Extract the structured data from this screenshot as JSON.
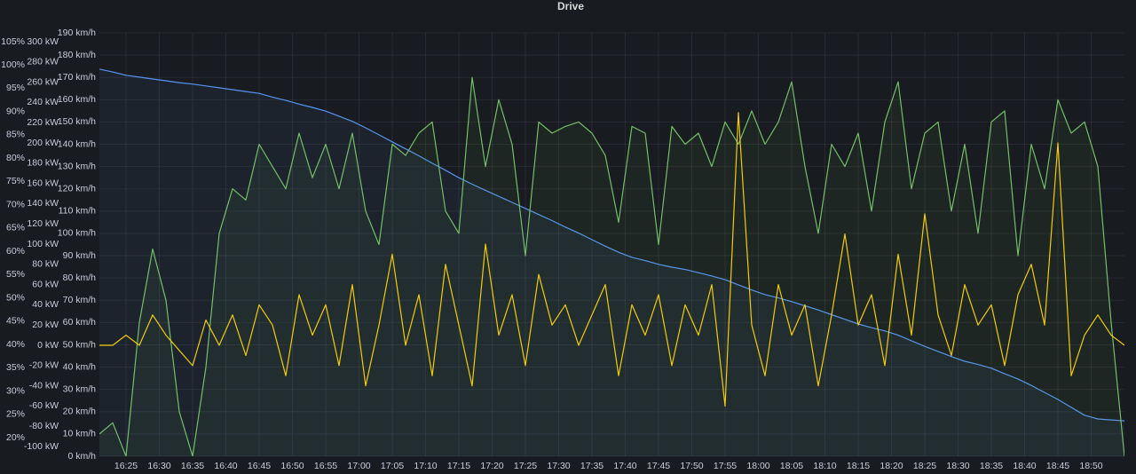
{
  "chart_data": {
    "type": "line",
    "title": "Drive",
    "x": [
      "16:21",
      "16:23",
      "16:25",
      "16:27",
      "16:29",
      "16:31",
      "16:33",
      "16:35",
      "16:37",
      "16:39",
      "16:41",
      "16:43",
      "16:45",
      "16:47",
      "16:49",
      "16:51",
      "16:53",
      "16:55",
      "16:57",
      "16:59",
      "17:01",
      "17:03",
      "17:05",
      "17:07",
      "17:09",
      "17:11",
      "17:13",
      "17:15",
      "17:17",
      "17:19",
      "17:21",
      "17:23",
      "17:25",
      "17:27",
      "17:29",
      "17:31",
      "17:33",
      "17:35",
      "17:37",
      "17:39",
      "17:41",
      "17:43",
      "17:45",
      "17:47",
      "17:49",
      "17:51",
      "17:53",
      "17:55",
      "17:57",
      "17:59",
      "18:01",
      "18:03",
      "18:05",
      "18:07",
      "18:09",
      "18:11",
      "18:13",
      "18:15",
      "18:17",
      "18:19",
      "18:21",
      "18:23",
      "18:25",
      "18:27",
      "18:29",
      "18:31",
      "18:33",
      "18:35",
      "18:37",
      "18:39",
      "18:41",
      "18:43",
      "18:45",
      "18:47",
      "18:49",
      "18:51",
      "18:53",
      "18:55"
    ],
    "xlim": [
      "16:21",
      "18:55"
    ],
    "xticks": [
      "16:25",
      "16:30",
      "16:35",
      "16:40",
      "16:45",
      "16:50",
      "16:55",
      "17:00",
      "17:05",
      "17:10",
      "17:15",
      "17:20",
      "17:25",
      "17:30",
      "17:35",
      "17:40",
      "17:45",
      "17:50",
      "17:55",
      "18:00",
      "18:05",
      "18:10",
      "18:15",
      "18:20",
      "18:25",
      "18:30",
      "18:35",
      "18:40",
      "18:45",
      "18:50"
    ],
    "ylim": [
      0,
      190
    ],
    "yticks": [
      {
        "value": 0,
        "label": "0 km/h"
      },
      {
        "value": 10,
        "label": "10 km/h"
      },
      {
        "value": 20,
        "label": "20 km/h"
      },
      {
        "value": 30,
        "label": "30 km/h"
      },
      {
        "value": 40,
        "label": "40 km/h"
      },
      {
        "value": 50,
        "label": "50 km/h"
      },
      {
        "value": 60,
        "label": "60 km/h"
      },
      {
        "value": 70,
        "label": "70 km/h"
      },
      {
        "value": 80,
        "label": "80 km/h"
      },
      {
        "value": 90,
        "label": "90 km/h"
      },
      {
        "value": 100,
        "label": "100 km/h"
      },
      {
        "value": 110,
        "label": "110 km/h"
      },
      {
        "value": 120,
        "label": "120 km/h"
      },
      {
        "value": 130,
        "label": "130 km/h"
      },
      {
        "value": 140,
        "label": "140 km/h"
      },
      {
        "value": 150,
        "label": "150 km/h"
      },
      {
        "value": 160,
        "label": "160 km/h"
      },
      {
        "value": 170,
        "label": "170 km/h"
      },
      {
        "value": 180,
        "label": "180 km/h"
      },
      {
        "value": 190,
        "label": "190 km/h"
      }
    ],
    "y2lim": [
      -109.6,
      308.8
    ],
    "y2ticks": [
      {
        "value": -100,
        "label": "-100 kW"
      },
      {
        "value": -80,
        "label": "-80 kW"
      },
      {
        "value": -60,
        "label": "-60 kW"
      },
      {
        "value": -40,
        "label": "-40 kW"
      },
      {
        "value": -20,
        "label": "-20 kW"
      },
      {
        "value": 0,
        "label": "0 kW"
      },
      {
        "value": 20,
        "label": "20 kW"
      },
      {
        "value": 40,
        "label": "40 kW"
      },
      {
        "value": 60,
        "label": "60 kW"
      },
      {
        "value": 80,
        "label": "80 kW"
      },
      {
        "value": 100,
        "label": "100 kW"
      },
      {
        "value": 120,
        "label": "120 kW"
      },
      {
        "value": 140,
        "label": "140 kW"
      },
      {
        "value": 160,
        "label": "160 kW"
      },
      {
        "value": 180,
        "label": "180 kW"
      },
      {
        "value": 200,
        "label": "200 kW"
      },
      {
        "value": 220,
        "label": "220 kW"
      },
      {
        "value": 240,
        "label": "240 kW"
      },
      {
        "value": 260,
        "label": "260 kW"
      },
      {
        "value": 280,
        "label": "280 kW"
      },
      {
        "value": 300,
        "label": "300 kW"
      }
    ],
    "y3lim": [
      16.0,
      106.9
    ],
    "y3ticks": [
      {
        "value": 20,
        "label": "20%"
      },
      {
        "value": 25,
        "label": "25%"
      },
      {
        "value": 30,
        "label": "30%"
      },
      {
        "value": 35,
        "label": "35%"
      },
      {
        "value": 40,
        "label": "40%"
      },
      {
        "value": 45,
        "label": "45%"
      },
      {
        "value": 50,
        "label": "50%"
      },
      {
        "value": 55,
        "label": "55%"
      },
      {
        "value": 60,
        "label": "60%"
      },
      {
        "value": 65,
        "label": "65%"
      },
      {
        "value": 70,
        "label": "70%"
      },
      {
        "value": 75,
        "label": "75%"
      },
      {
        "value": 80,
        "label": "80%"
      },
      {
        "value": 85,
        "label": "85%"
      },
      {
        "value": 90,
        "label": "90%"
      },
      {
        "value": 95,
        "label": "95%"
      },
      {
        "value": 100,
        "label": "100%"
      },
      {
        "value": 105,
        "label": "105%"
      }
    ],
    "grid": true,
    "series": [
      {
        "color": "#5794f2",
        "axis": "y3",
        "fill": true,
        "values": [
          99.1,
          98.5,
          97.8,
          97.4,
          97.0,
          96.6,
          96.2,
          95.9,
          95.5,
          95.1,
          94.7,
          94.3,
          93.9,
          93.1,
          92.4,
          91.6,
          90.9,
          90.1,
          89.0,
          87.9,
          86.5,
          85.0,
          83.5,
          82.0,
          80.5,
          78.9,
          77.4,
          75.8,
          74.4,
          73.1,
          71.8,
          70.5,
          69.2,
          67.9,
          66.6,
          65.2,
          63.9,
          62.5,
          61.1,
          59.8,
          58.7,
          58.0,
          57.2,
          56.6,
          56.1,
          55.4,
          54.7,
          53.9,
          52.8,
          51.7,
          50.7,
          50.0,
          49.2,
          48.3,
          47.4,
          46.4,
          45.4,
          44.4,
          43.6,
          42.9,
          42.0,
          40.8,
          39.6,
          38.5,
          37.4,
          36.4,
          35.7,
          34.9,
          33.7,
          32.6,
          31.2,
          29.7,
          28.2,
          26.5,
          24.8,
          24.0,
          23.8,
          23.6
        ]
      },
      {
        "color": "#73bf69",
        "axis": "y",
        "fill": true,
        "values": [
          10,
          15,
          0,
          60,
          93,
          70,
          20,
          0,
          40,
          100,
          120,
          115,
          140,
          130,
          120,
          145,
          125,
          140,
          120,
          145,
          110,
          95,
          140,
          135,
          145,
          150,
          110,
          100,
          170,
          130,
          160,
          140,
          90,
          150,
          145,
          148,
          150,
          145,
          135,
          105,
          148,
          145,
          95,
          148,
          140,
          145,
          130,
          150,
          140,
          155,
          140,
          150,
          168,
          130,
          100,
          140,
          130,
          145,
          110,
          150,
          168,
          120,
          145,
          150,
          110,
          140,
          100,
          150,
          155,
          90,
          140,
          120,
          160,
          145,
          150,
          130,
          60,
          0
        ]
      },
      {
        "color": "#f2cc0c",
        "axis": "y2",
        "fill": false,
        "values": [
          0,
          0,
          10,
          0,
          30,
          10,
          -5,
          -20,
          25,
          0,
          30,
          -10,
          40,
          20,
          -30,
          50,
          10,
          40,
          -20,
          60,
          -40,
          20,
          90,
          0,
          50,
          -30,
          80,
          20,
          -40,
          100,
          10,
          50,
          -20,
          70,
          20,
          40,
          0,
          30,
          60,
          -30,
          40,
          10,
          50,
          -20,
          40,
          10,
          60,
          -60,
          230,
          20,
          -30,
          60,
          10,
          40,
          -40,
          30,
          110,
          20,
          50,
          -20,
          90,
          10,
          130,
          30,
          -10,
          60,
          20,
          40,
          -20,
          50,
          80,
          20,
          200,
          -30,
          10,
          30,
          10,
          0
        ]
      }
    ]
  }
}
